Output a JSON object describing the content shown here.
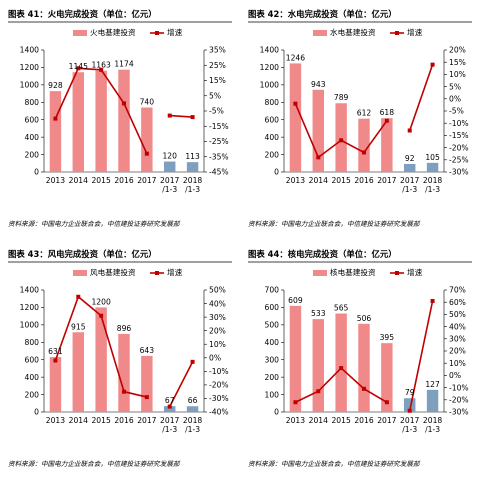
{
  "chart_data": [
    {
      "type": "bar",
      "title": "图表 41：火电完成投资（单位：亿元）",
      "categories": [
        "2013",
        "2014",
        "2015",
        "2016",
        "2017",
        "2017/1-3",
        "2018/1-3"
      ],
      "series": [
        {
          "name": "火电基建投资",
          "type": "bar",
          "axis": "left",
          "values": [
            928,
            1145,
            1163,
            1174,
            740,
            120,
            113
          ]
        },
        {
          "name": "增速",
          "type": "line",
          "axis": "right",
          "values": [
            -10,
            23,
            22,
            0,
            -33,
            -8,
            -9
          ]
        }
      ],
      "ylim": [
        0,
        1400
      ],
      "yticks": [
        0,
        200,
        400,
        600,
        800,
        1000,
        1200,
        1400
      ],
      "y2lim": [
        -45,
        35
      ],
      "y2ticks": [
        -45,
        -35,
        -25,
        -15,
        -5,
        5,
        15,
        25,
        35
      ],
      "legend": "top",
      "grid": false,
      "source": "资料来源：中国电力企业联合会，中信建投证券研究发展部"
    },
    {
      "type": "bar",
      "title": "图表 42：水电完成投资（单位：亿元）",
      "categories": [
        "2013",
        "2014",
        "2015",
        "2016",
        "2017",
        "2017/1-3",
        "2018/1-3"
      ],
      "series": [
        {
          "name": "水电基建投资",
          "type": "bar",
          "axis": "left",
          "values": [
            1246,
            943,
            789,
            612,
            618,
            92,
            105
          ]
        },
        {
          "name": "增速",
          "type": "line",
          "axis": "right",
          "values": [
            -2,
            -24,
            -17,
            -22,
            -9,
            -13,
            14
          ]
        }
      ],
      "ylim": [
        0,
        1400
      ],
      "yticks": [
        0,
        200,
        400,
        600,
        800,
        1000,
        1200,
        1400
      ],
      "y2lim": [
        -30,
        20
      ],
      "y2ticks": [
        -30,
        -25,
        -20,
        -15,
        -10,
        -5,
        0,
        5,
        10,
        15,
        20
      ],
      "legend": "top",
      "grid": false,
      "source": "资料来源：中国电力企业联合会，中信建投证券研究发展部"
    },
    {
      "type": "bar",
      "title": "图表 43：风电完成投资（单位：亿元）",
      "categories": [
        "2013",
        "2014",
        "2015",
        "2016",
        "2017",
        "2017/1-3",
        "2018/1-3"
      ],
      "series": [
        {
          "name": "风电基建投资",
          "type": "bar",
          "axis": "left",
          "values": [
            631,
            915,
            1200,
            896,
            643,
            67,
            66
          ]
        },
        {
          "name": "增速",
          "type": "line",
          "axis": "right",
          "values": [
            -2,
            45,
            31,
            -25,
            -29,
            -36,
            -3
          ]
        }
      ],
      "ylim": [
        0,
        1400
      ],
      "yticks": [
        0,
        200,
        400,
        600,
        800,
        1000,
        1200,
        1400
      ],
      "y2lim": [
        -40,
        50
      ],
      "y2ticks": [
        -40,
        -30,
        -20,
        -10,
        0,
        10,
        20,
        30,
        40,
        50
      ],
      "legend": "top",
      "grid": false,
      "source": "资料来源：中国电力企业联合会，中信建投证券研究发展部"
    },
    {
      "type": "bar",
      "title": "图表 44：核电完成投资（单位：亿元）",
      "categories": [
        "2013",
        "2014",
        "2015",
        "2016",
        "2017",
        "2017/1-3",
        "2018/1-3"
      ],
      "series": [
        {
          "name": "核电基建投资",
          "type": "bar",
          "axis": "left",
          "values": [
            609,
            533,
            565,
            506,
            395,
            79,
            127
          ]
        },
        {
          "name": "增速",
          "type": "line",
          "axis": "right",
          "values": [
            -22,
            -13,
            6,
            -11,
            -22,
            -29,
            61
          ]
        }
      ],
      "ylim": [
        0,
        700
      ],
      "yticks": [
        0,
        100,
        200,
        300,
        400,
        500,
        600,
        700
      ],
      "y2lim": [
        -30,
        70
      ],
      "y2ticks": [
        -30,
        -20,
        -10,
        0,
        10,
        20,
        30,
        40,
        50,
        60,
        70
      ],
      "legend": "top",
      "grid": false,
      "source": "资料来源：中国电力企业联合会，中信建投证券研究发展部"
    }
  ],
  "colors": {
    "bar_annual": "#f08a8a",
    "bar_quarter": "#7f9fbf",
    "line": "#c00000"
  }
}
